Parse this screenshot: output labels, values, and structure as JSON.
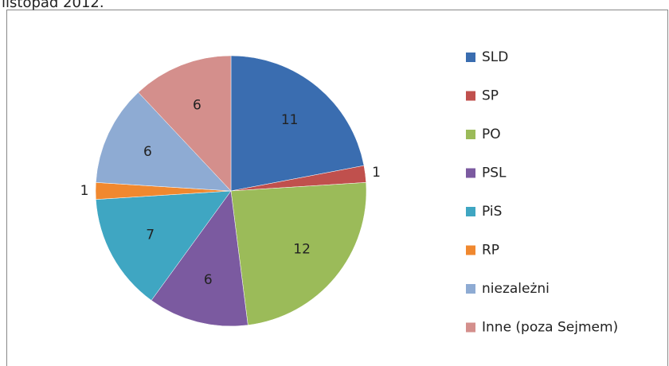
{
  "chart_data": {
    "type": "pie",
    "title": "listopad 2012.",
    "categories": [
      "SLD",
      "SP",
      "PO",
      "PSL",
      "PiS",
      "RP",
      "niezależni",
      "Inne (poza Sejmem)"
    ],
    "values": [
      11,
      1,
      12,
      6,
      7,
      1,
      6,
      6
    ],
    "colors": [
      "#3a6db0",
      "#c0504d",
      "#9bbb59",
      "#7b5aa0",
      "#3fa6c2",
      "#f0882f",
      "#8eabd3",
      "#d48f8c"
    ],
    "legend": "right"
  }
}
